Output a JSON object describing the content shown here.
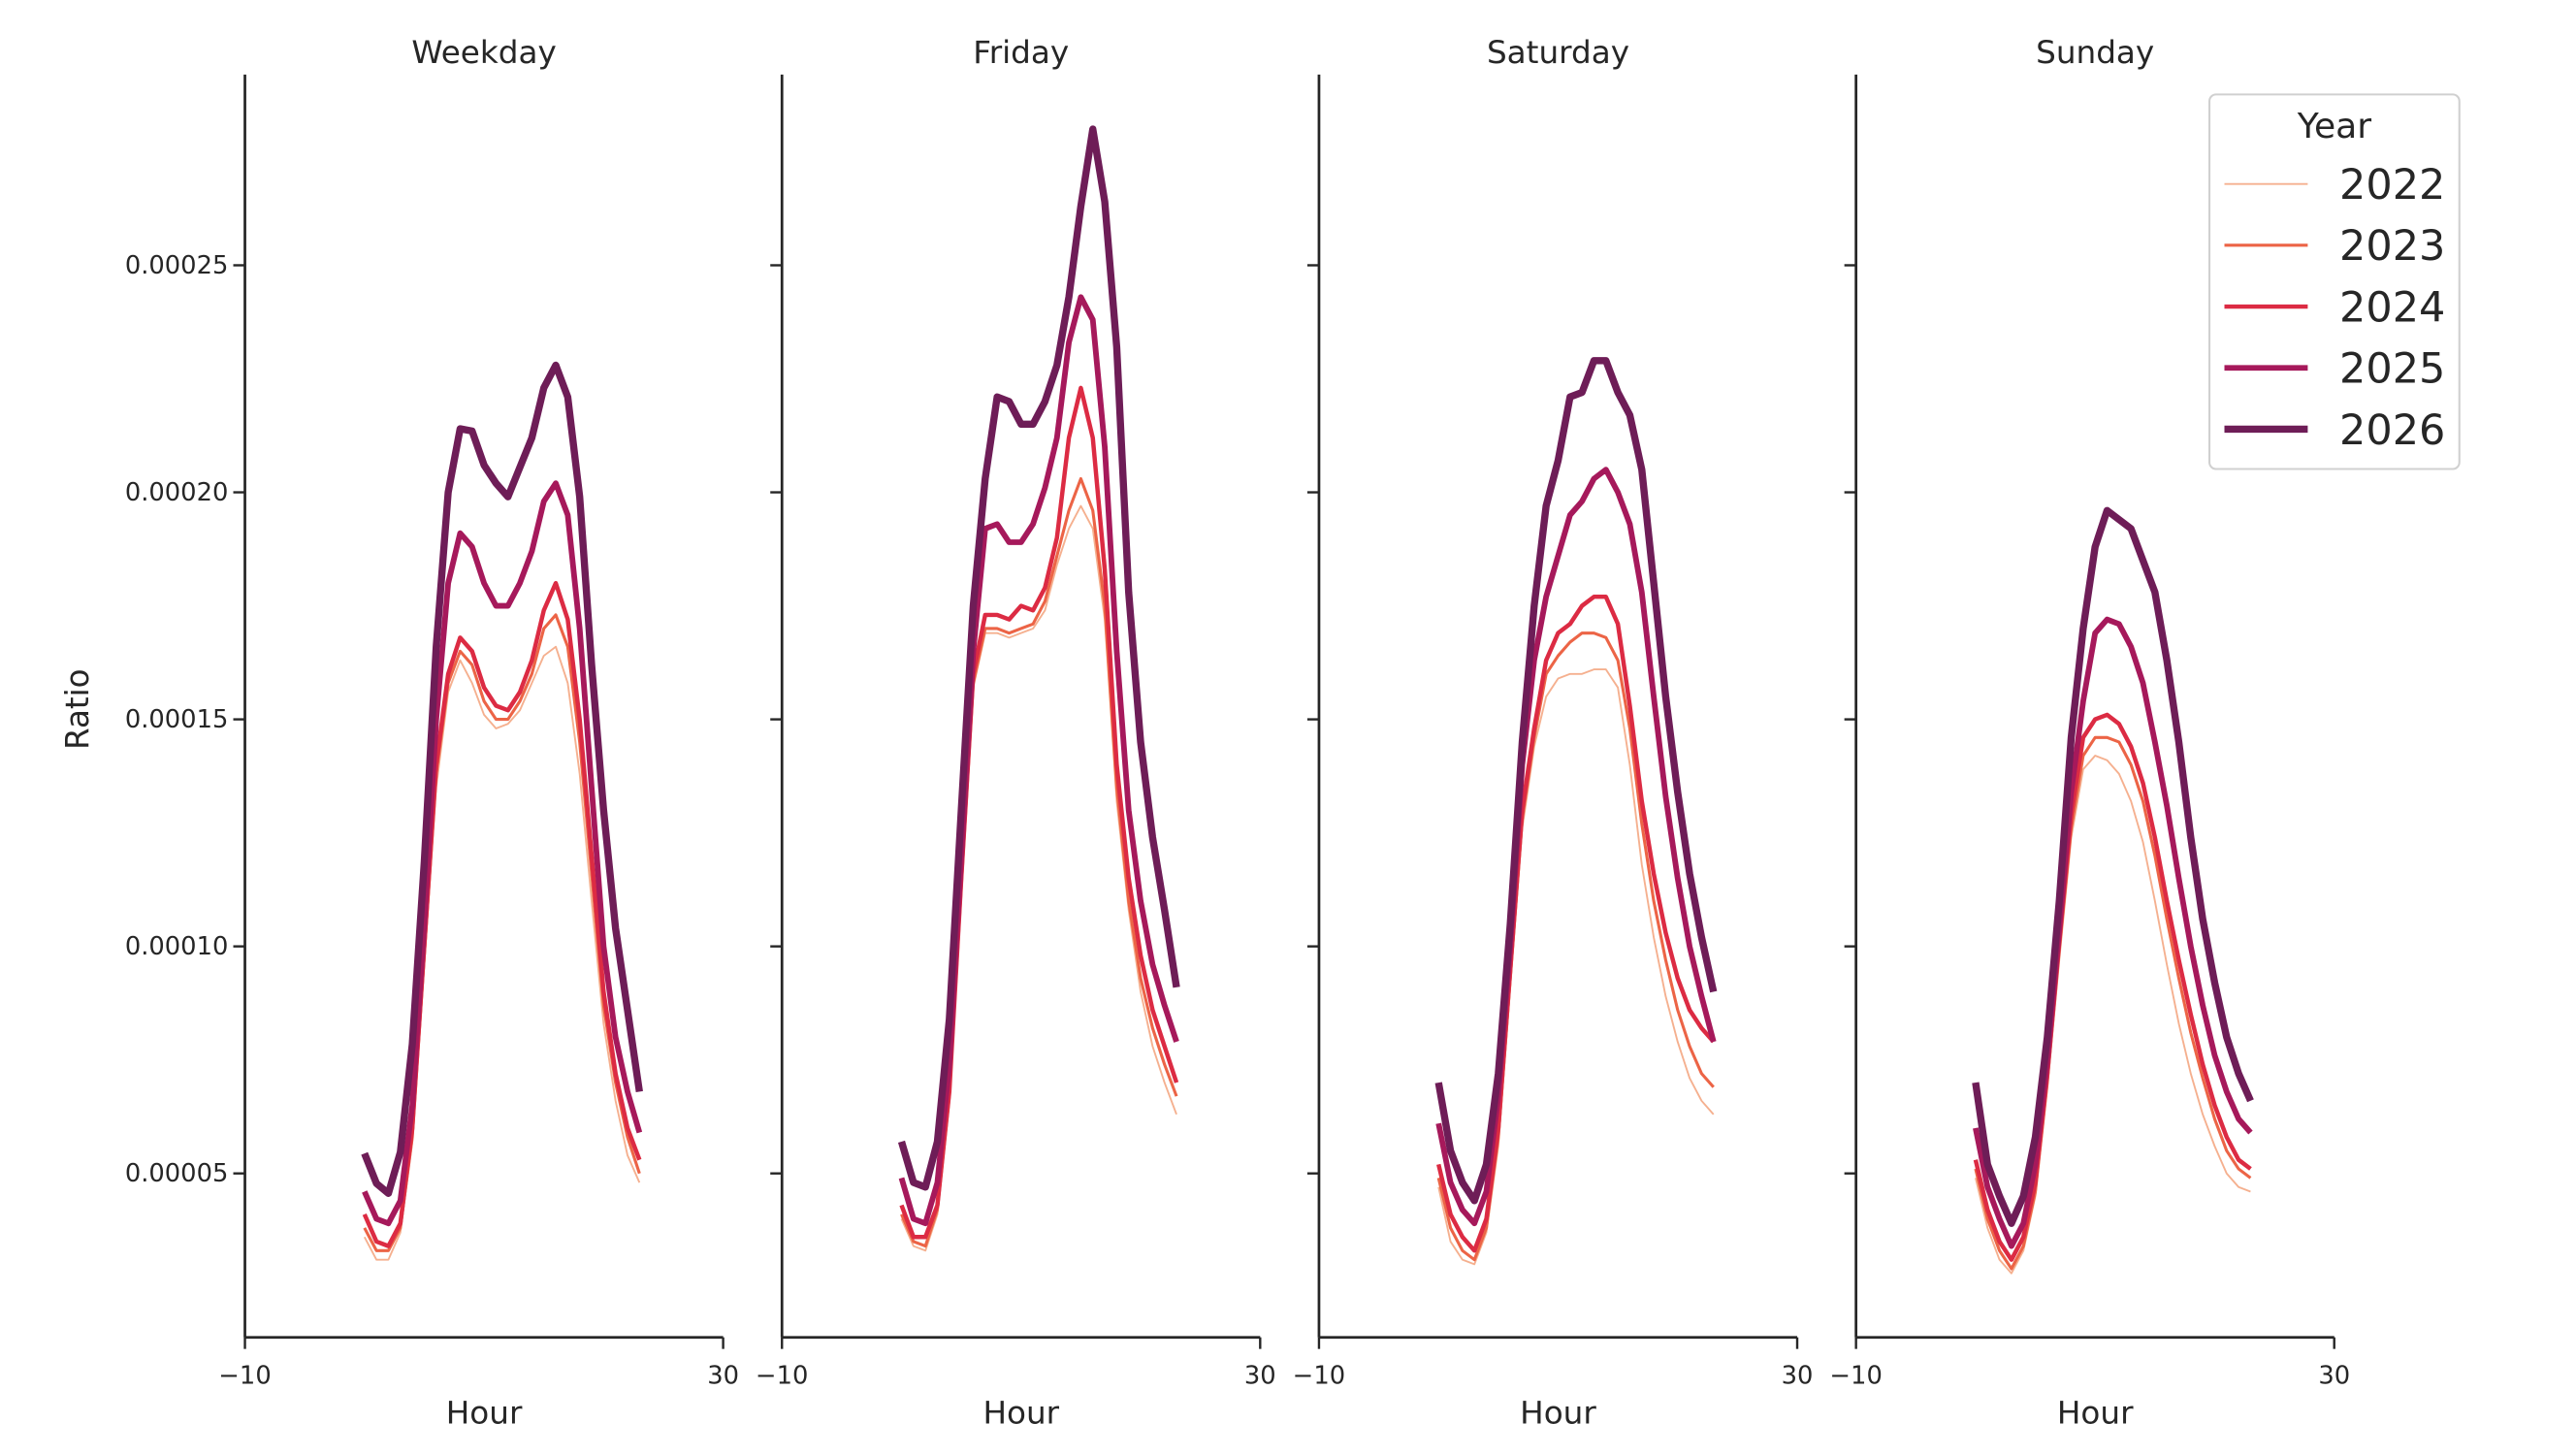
{
  "chart_data": [
    {
      "type": "line",
      "title": "Weekday",
      "xlabel": "Hour",
      "ylabel": "Ratio",
      "x": [
        0,
        1,
        2,
        3,
        4,
        5,
        6,
        7,
        8,
        9,
        10,
        11,
        12,
        13,
        14,
        15,
        16,
        17,
        18,
        19,
        20,
        21,
        22,
        23
      ],
      "xlim": [
        -10,
        30
      ],
      "xticks": [
        {
          "value": -10,
          "label": "−10"
        },
        30
      ],
      "ylim": [
        1.39e-05,
        0.000292
      ],
      "yticks": [
        5e-05,
        {
          "value": 0.0001,
          "label": "0.00010"
        },
        0.00015,
        {
          "value": 0.0002,
          "label": "0.00020"
        },
        0.00025
      ],
      "series": [
        {
          "name": "2022",
          "color": "#f5b08f",
          "values": [
            3.6e-05,
            3.1e-05,
            3.1e-05,
            3.7e-05,
            5.7e-05,
            9.6e-05,
            0.000135,
            0.000156,
            0.000163,
            0.000158,
            0.000151,
            0.000148,
            0.000149,
            0.000152,
            0.000158,
            0.000164,
            0.000166,
            0.000158,
            0.000138,
            0.00011,
            8.3e-05,
            6.6e-05,
            5.4e-05,
            4.8e-05
          ]
        },
        {
          "name": "2023",
          "color": "#ec6446",
          "values": [
            3.8e-05,
            3.3e-05,
            3.3e-05,
            3.8e-05,
            5.8e-05,
            9.8e-05,
            0.000138,
            0.000158,
            0.000165,
            0.000162,
            0.000154,
            0.00015,
            0.00015,
            0.000154,
            0.00016,
            0.00017,
            0.000173,
            0.000166,
            0.000145,
            0.000116,
            8.7e-05,
            7e-05,
            5.8e-05,
            5e-05
          ]
        },
        {
          "name": "2024",
          "color": "#dc2b43",
          "values": [
            4.1e-05,
            3.5e-05,
            3.4e-05,
            3.9e-05,
            6e-05,
            0.0001,
            0.00014,
            0.00016,
            0.000168,
            0.000165,
            0.000157,
            0.000153,
            0.000152,
            0.000156,
            0.000163,
            0.000174,
            0.00018,
            0.000172,
            0.00015,
            0.00012,
            9e-05,
            7.2e-05,
            6e-05,
            5.3e-05
          ]
        },
        {
          "name": "2025",
          "color": "#a6195b",
          "values": [
            4.6e-05,
            4e-05,
            3.9e-05,
            4.4e-05,
            6.5e-05,
            0.000105,
            0.00015,
            0.00018,
            0.000191,
            0.000188,
            0.00018,
            0.000175,
            0.000175,
            0.00018,
            0.000187,
            0.000198,
            0.000202,
            0.000195,
            0.00017,
            0.000135,
            0.0001,
            8e-05,
            6.8e-05,
            5.9e-05
          ]
        },
        {
          "name": "2026",
          "color": "#6e1d57",
          "values": [
            5.44e-05,
            4.78e-05,
            4.56e-05,
            5.47e-05,
            7.85e-05,
            0.0001186,
            0.000166,
            0.0002,
            0.000214,
            0.0002135,
            0.000206,
            0.000202,
            0.000199,
            0.0002055,
            0.000212,
            0.000223,
            0.000228,
            0.000221,
            0.000199,
            0.000162,
            0.00013,
            0.000104,
            8.6e-05,
            6.8e-05
          ]
        }
      ]
    },
    {
      "type": "line",
      "title": "Friday",
      "xlabel": "Hour",
      "x": [
        0,
        1,
        2,
        3,
        4,
        5,
        6,
        7,
        8,
        9,
        10,
        11,
        12,
        13,
        14,
        15,
        16,
        17,
        18,
        19,
        20,
        21,
        22,
        23
      ],
      "xlim": [
        -10,
        30
      ],
      "xticks": [
        {
          "value": -10,
          "label": "−10"
        },
        30
      ],
      "ylim": [
        1.39e-05,
        0.000292
      ],
      "series": [
        {
          "name": "2022",
          "color": "#f5b08f",
          "values": [
            4e-05,
            3.4e-05,
            3.3e-05,
            4.1e-05,
            6.6e-05,
            0.000112,
            0.000157,
            0.000169,
            0.000169,
            0.000168,
            0.000169,
            0.00017,
            0.000174,
            0.000184,
            0.000192,
            0.000197,
            0.000192,
            0.000172,
            0.000132,
            0.000108,
            9e-05,
            7.8e-05,
            7e-05,
            6.3e-05
          ]
        },
        {
          "name": "2023",
          "color": "#ec6446",
          "values": [
            4.1e-05,
            3.5e-05,
            3.4e-05,
            4.2e-05,
            6.7e-05,
            0.000113,
            0.000158,
            0.00017,
            0.00017,
            0.000169,
            0.00017,
            0.000171,
            0.000176,
            0.000186,
            0.000196,
            0.000203,
            0.000196,
            0.000175,
            0.000135,
            0.00011,
            9.3e-05,
            8.2e-05,
            7.4e-05,
            6.7e-05
          ]
        },
        {
          "name": "2024",
          "color": "#dc2b43",
          "values": [
            4.3e-05,
            3.6e-05,
            3.6e-05,
            4.3e-05,
            6.8e-05,
            0.000115,
            0.00016,
            0.000173,
            0.000173,
            0.000172,
            0.000175,
            0.000174,
            0.000179,
            0.00019,
            0.000212,
            0.000223,
            0.000212,
            0.000183,
            0.00014,
            0.000115,
            9.8e-05,
            8.6e-05,
            7.8e-05,
            7e-05
          ]
        },
        {
          "name": "2025",
          "color": "#a6195b",
          "values": [
            4.9e-05,
            4e-05,
            3.9e-05,
            4.8e-05,
            7.4e-05,
            0.00012,
            0.000165,
            0.000192,
            0.000193,
            0.000189,
            0.000189,
            0.000193,
            0.000201,
            0.000212,
            0.000233,
            0.000243,
            0.000238,
            0.00021,
            0.000165,
            0.00013,
            0.00011,
            9.6e-05,
            8.7e-05,
            7.9e-05
          ]
        },
        {
          "name": "2026",
          "color": "#6e1d57",
          "values": [
            5.7e-05,
            4.8e-05,
            4.7e-05,
            5.7e-05,
            8.4e-05,
            0.00013,
            0.000175,
            0.000203,
            0.000221,
            0.00022,
            0.000215,
            0.000215,
            0.00022,
            0.000228,
            0.000243,
            0.000263,
            0.00028,
            0.000264,
            0.000232,
            0.000178,
            0.000145,
            0.000124,
            0.000108,
            9.1e-05
          ]
        }
      ]
    },
    {
      "type": "line",
      "title": "Saturday",
      "xlabel": "Hour",
      "x": [
        0,
        1,
        2,
        3,
        4,
        5,
        6,
        7,
        8,
        9,
        10,
        11,
        12,
        13,
        14,
        15,
        16,
        17,
        18,
        19,
        20,
        21,
        22,
        23
      ],
      "xlim": [
        -10,
        30
      ],
      "xticks": [
        {
          "value": -10,
          "label": "−10"
        },
        30
      ],
      "ylim": [
        1.39e-05,
        0.000292
      ],
      "series": [
        {
          "name": "2022",
          "color": "#f5b08f",
          "values": [
            4.7e-05,
            3.5e-05,
            3.1e-05,
            3e-05,
            3.7e-05,
            5.6e-05,
            9.1e-05,
            0.000126,
            0.000144,
            0.000155,
            0.000159,
            0.00016,
            0.00016,
            0.000161,
            0.000161,
            0.000157,
            0.00014,
            0.000118,
            0.000102,
            8.9e-05,
            7.9e-05,
            7.1e-05,
            6.6e-05,
            6.3e-05
          ]
        },
        {
          "name": "2023",
          "color": "#ec6446",
          "values": [
            4.9e-05,
            3.8e-05,
            3.3e-05,
            3.1e-05,
            3.8e-05,
            5.8e-05,
            9.3e-05,
            0.000128,
            0.000146,
            0.00016,
            0.000164,
            0.000167,
            0.000169,
            0.000169,
            0.000168,
            0.000163,
            0.000148,
            0.000127,
            0.00011,
            9.7e-05,
            8.6e-05,
            7.8e-05,
            7.2e-05,
            6.9e-05
          ]
        },
        {
          "name": "2024",
          "color": "#dc2b43",
          "values": [
            5.2e-05,
            4.1e-05,
            3.6e-05,
            3.3e-05,
            4e-05,
            6e-05,
            9.5e-05,
            0.00013,
            0.000148,
            0.000163,
            0.000169,
            0.000171,
            0.000175,
            0.000177,
            0.000177,
            0.000171,
            0.000153,
            0.000132,
            0.000116,
            0.000103,
            9.3e-05,
            8.6e-05,
            8.2e-05,
            7.9e-05
          ]
        },
        {
          "name": "2025",
          "color": "#a6195b",
          "values": [
            6.1e-05,
            4.8e-05,
            4.2e-05,
            3.9e-05,
            4.6e-05,
            6.7e-05,
            0.0001,
            0.00014,
            0.000163,
            0.000177,
            0.000186,
            0.000195,
            0.000198,
            0.000203,
            0.000205,
            0.0002,
            0.000193,
            0.000178,
            0.000155,
            0.000133,
            0.000115,
            0.0001,
            8.9e-05,
            7.9e-05
          ]
        },
        {
          "name": "2026",
          "color": "#6e1d57",
          "values": [
            7e-05,
            5.5e-05,
            4.8e-05,
            4.4e-05,
            5.2e-05,
            7.2e-05,
            0.000105,
            0.000145,
            0.000175,
            0.000197,
            0.000207,
            0.000221,
            0.000222,
            0.000229,
            0.000229,
            0.000222,
            0.000217,
            0.000205,
            0.00018,
            0.000155,
            0.000134,
            0.000116,
            0.000102,
            9e-05
          ]
        }
      ]
    },
    {
      "type": "line",
      "title": "Sunday",
      "xlabel": "Hour",
      "legend_title": "Year",
      "legend": "upper right",
      "x": [
        0,
        1,
        2,
        3,
        4,
        5,
        6,
        7,
        8,
        9,
        10,
        11,
        12,
        13,
        14,
        15,
        16,
        17,
        18,
        19,
        20,
        21,
        22,
        23
      ],
      "xlim": [
        -10,
        30
      ],
      "xticks": [
        {
          "value": -10,
          "label": "−10"
        },
        30
      ],
      "ylim": [
        1.39e-05,
        0.000292
      ],
      "series": [
        {
          "name": "2022",
          "color": "#f5b08f",
          "values": [
            4.9e-05,
            3.8e-05,
            3.1e-05,
            2.8e-05,
            3.3e-05,
            4.5e-05,
            6.9e-05,
            9.7e-05,
            0.000124,
            0.000139,
            0.000142,
            0.000141,
            0.000138,
            0.000132,
            0.000123,
            0.00011,
            9.6e-05,
            8.3e-05,
            7.2e-05,
            6.3e-05,
            5.6e-05,
            5e-05,
            4.7e-05,
            4.6e-05
          ]
        },
        {
          "name": "2023",
          "color": "#ec6446",
          "values": [
            5.1e-05,
            4e-05,
            3.3e-05,
            2.9e-05,
            3.4e-05,
            4.6e-05,
            7e-05,
            9.9e-05,
            0.000126,
            0.000142,
            0.000146,
            0.000146,
            0.000145,
            0.00014,
            0.000132,
            0.00012,
            0.000106,
            9.3e-05,
            8.1e-05,
            7.1e-05,
            6.2e-05,
            5.5e-05,
            5.1e-05,
            4.9e-05
          ]
        },
        {
          "name": "2024",
          "color": "#dc2b43",
          "values": [
            5.3e-05,
            4.2e-05,
            3.5e-05,
            3.1e-05,
            3.6e-05,
            4.8e-05,
            7.2e-05,
            0.000101,
            0.000129,
            0.000146,
            0.00015,
            0.000151,
            0.000149,
            0.000144,
            0.000136,
            0.000124,
            0.00011,
            9.7e-05,
            8.5e-05,
            7.4e-05,
            6.5e-05,
            5.8e-05,
            5.3e-05,
            5.1e-05
          ]
        },
        {
          "name": "2025",
          "color": "#a6195b",
          "values": [
            6e-05,
            4.7e-05,
            4e-05,
            3.4e-05,
            3.9e-05,
            5.2e-05,
            7.5e-05,
            0.000104,
            0.000134,
            0.000154,
            0.000169,
            0.000172,
            0.000171,
            0.000166,
            0.000158,
            0.000145,
            0.000131,
            0.000115,
            0.0001,
            8.7e-05,
            7.6e-05,
            6.8e-05,
            6.2e-05,
            5.9e-05
          ]
        },
        {
          "name": "2026",
          "color": "#6e1d57",
          "values": [
            7e-05,
            5.2e-05,
            4.5e-05,
            3.9e-05,
            4.5e-05,
            5.8e-05,
            8e-05,
            0.00011,
            0.000146,
            0.00017,
            0.000188,
            0.000196,
            0.000194,
            0.000192,
            0.000185,
            0.000178,
            0.000163,
            0.000145,
            0.000124,
            0.000106,
            9.2e-05,
            8e-05,
            7.2e-05,
            6.6e-05
          ]
        }
      ]
    }
  ]
}
